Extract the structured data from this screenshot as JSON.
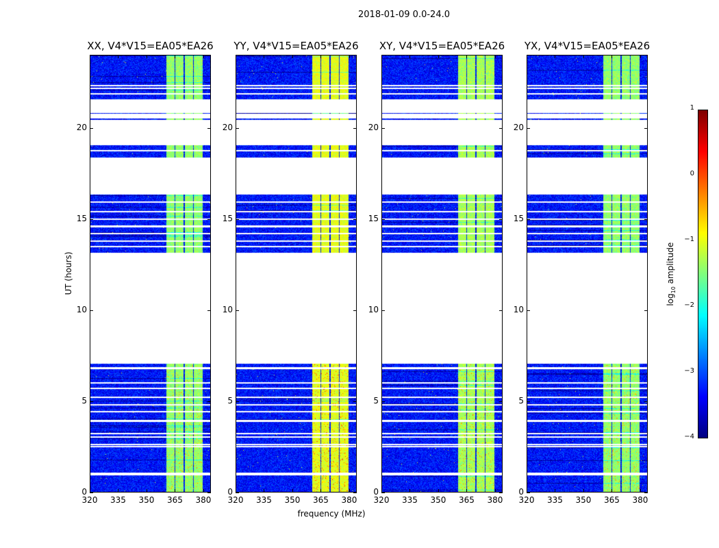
{
  "suptitle": "2018-01-09 0.0-24.0",
  "chart_data": {
    "type": "heatmap",
    "title": "2018-01-09 0.0-24.0",
    "xlabel": "frequency (MHz)",
    "ylabel": "UT (hours)",
    "xlim": [
      320,
      384
    ],
    "ylim": [
      0,
      24
    ],
    "xticks": [
      320,
      335,
      350,
      365,
      380
    ],
    "yticks": [
      0,
      5,
      10,
      15,
      20
    ],
    "panels": [
      {
        "title": "XX, V4*V15=EA05*EA26",
        "bright_level": -1.4
      },
      {
        "title": "YY, V4*V15=EA05*EA26",
        "bright_level": -1.0
      },
      {
        "title": "XY, V4*V15=EA05*EA26",
        "bright_level": -1.3
      },
      {
        "title": "YX, V4*V15=EA05*EA26",
        "bright_level": -1.4
      }
    ],
    "background_level": -3.3,
    "bright_freq_ranges_MHz": [
      [
        360.5,
        364.8
      ],
      [
        365.4,
        369.8
      ],
      [
        370.4,
        374.8
      ],
      [
        375.4,
        380
      ]
    ],
    "data_time_ranges_hours": [
      [
        21.6,
        24
      ],
      [
        20.45,
        20.55
      ],
      [
        20.8,
        20.85
      ],
      [
        18.4,
        19.05
      ],
      [
        13.15,
        16.35
      ],
      [
        0,
        7.05
      ]
    ],
    "blank_time_lines_hours": [
      22.2,
      22.35,
      21.9,
      18.75,
      15.95,
      15.4,
      15.0,
      14.6,
      14.2,
      13.8,
      13.5,
      6.8,
      6.0,
      5.7,
      5.2,
      4.8,
      4.4,
      3.9,
      3.2,
      3.0,
      2.6,
      2.5,
      1.0,
      0.95
    ],
    "colorbar": {
      "label": "log10 amplitude",
      "ticks": [
        "1",
        "0",
        "−1",
        "−2",
        "−3",
        "−4"
      ],
      "range": [
        -4,
        1
      ],
      "colormap": "jet"
    }
  },
  "axis_labels": {
    "x": "frequency (MHz)",
    "y": "UT (hours)",
    "cbar_main": "log",
    "cbar_sub": "10",
    "cbar_rest": " amplitude"
  }
}
